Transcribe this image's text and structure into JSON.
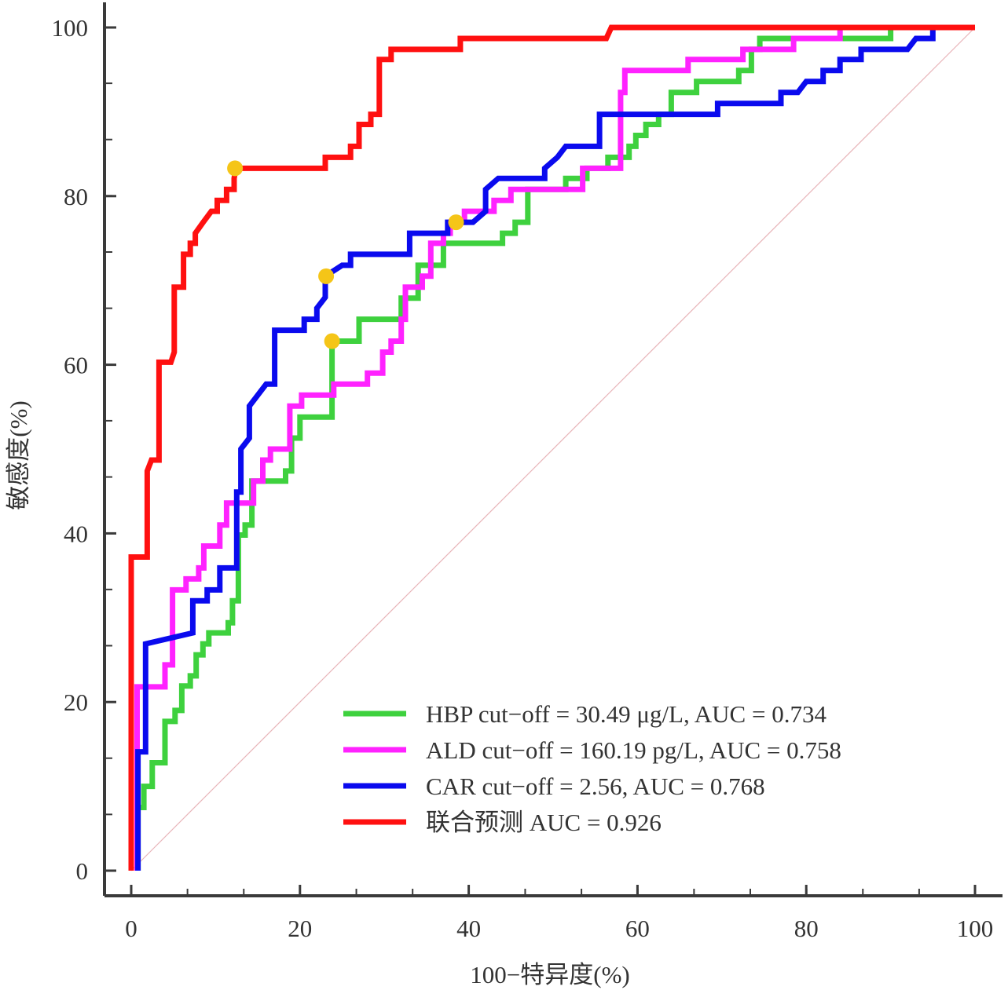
{
  "chart_data": {
    "type": "line",
    "title": "",
    "xlabel": "100−特异度(%)",
    "ylabel": "敏感度(%)",
    "xlim": [
      0,
      100
    ],
    "ylim": [
      0,
      100
    ],
    "x_ticks": [
      "0",
      "20",
      "40",
      "60",
      "80",
      "100"
    ],
    "y_ticks": [
      "0",
      "20",
      "40",
      "60",
      "80",
      "100"
    ],
    "x_minor_step": 6.67,
    "y_minor_step": 6.67,
    "grid": false,
    "legend_position": "bottom-right",
    "reference_line": {
      "from": [
        0,
        0
      ],
      "to": [
        100,
        100
      ],
      "color": "#e8b4b8"
    },
    "series": [
      {
        "name": "HBP cut−off = 30.49 μg/L, AUC = 0.734",
        "color": "#3ed13e",
        "cutoff_point": [
          23.8,
          62.8
        ],
        "points": [
          [
            0.8,
            0
          ],
          [
            0.8,
            7.5
          ],
          [
            1.5,
            7.5
          ],
          [
            1.5,
            10
          ],
          [
            2.5,
            10
          ],
          [
            2.5,
            12.8
          ],
          [
            4,
            12.8
          ],
          [
            4,
            17.7
          ],
          [
            5.2,
            17.7
          ],
          [
            5.2,
            19
          ],
          [
            6,
            19
          ],
          [
            6,
            21.9
          ],
          [
            7,
            21.9
          ],
          [
            7,
            23.1
          ],
          [
            7.7,
            23.1
          ],
          [
            7.7,
            25.6
          ],
          [
            8.5,
            25.6
          ],
          [
            8.5,
            26.9
          ],
          [
            9.2,
            26.9
          ],
          [
            9.2,
            28.2
          ],
          [
            11.5,
            28.2
          ],
          [
            11.5,
            29.4
          ],
          [
            12,
            29.4
          ],
          [
            12,
            32
          ],
          [
            12.7,
            32
          ],
          [
            12.7,
            39.8
          ],
          [
            13.5,
            39.8
          ],
          [
            13.5,
            41
          ],
          [
            14.3,
            41
          ],
          [
            14.3,
            46.2
          ],
          [
            15.5,
            46.2
          ],
          [
            15.5,
            46.2
          ],
          [
            18.3,
            46.2
          ],
          [
            18.3,
            47.4
          ],
          [
            19,
            47.4
          ],
          [
            19,
            51.3
          ],
          [
            20,
            51.3
          ],
          [
            20,
            53.8
          ],
          [
            23.8,
            53.8
          ],
          [
            23.8,
            62.8
          ],
          [
            27,
            62.8
          ],
          [
            27,
            65.4
          ],
          [
            32,
            65.4
          ],
          [
            32,
            67.9
          ],
          [
            34,
            67.9
          ],
          [
            34,
            71.8
          ],
          [
            37,
            71.8
          ],
          [
            37,
            74.4
          ],
          [
            44,
            74.4
          ],
          [
            44,
            75.6
          ],
          [
            45.5,
            75.6
          ],
          [
            45.5,
            76.9
          ],
          [
            47,
            76.9
          ],
          [
            47,
            80.8
          ],
          [
            51.5,
            80.8
          ],
          [
            51.5,
            82.1
          ],
          [
            54,
            82.1
          ],
          [
            54,
            83.3
          ],
          [
            56.5,
            83.3
          ],
          [
            56.5,
            84.6
          ],
          [
            59,
            84.6
          ],
          [
            59,
            85.9
          ],
          [
            59.8,
            85.9
          ],
          [
            59.8,
            87.2
          ],
          [
            61,
            87.2
          ],
          [
            61,
            88.5
          ],
          [
            62.5,
            88.5
          ],
          [
            62.5,
            89.7
          ],
          [
            64,
            89.7
          ],
          [
            64,
            92.3
          ],
          [
            67,
            92.3
          ],
          [
            67,
            93.6
          ],
          [
            72,
            93.6
          ],
          [
            72,
            94.9
          ],
          [
            73.5,
            94.9
          ],
          [
            73.5,
            97.4
          ],
          [
            74.5,
            97.4
          ],
          [
            74.5,
            98.7
          ],
          [
            90,
            98.7
          ],
          [
            90,
            100
          ],
          [
            100,
            100
          ]
        ]
      },
      {
        "name": "ALD cut−off = 160.19 pg/L, AUC = 0.758",
        "color": "#ff22ff",
        "cutoff_point": [
          38.5,
          76.9
        ],
        "points": [
          [
            0.7,
            0
          ],
          [
            0.7,
            21.8
          ],
          [
            4,
            21.8
          ],
          [
            4,
            24.4
          ],
          [
            4.9,
            24.4
          ],
          [
            4.9,
            33.3
          ],
          [
            6.5,
            33.3
          ],
          [
            6.5,
            34.6
          ],
          [
            8,
            34.6
          ],
          [
            8,
            35.9
          ],
          [
            8.6,
            35.9
          ],
          [
            8.6,
            38.5
          ],
          [
            10.5,
            38.5
          ],
          [
            10.5,
            41
          ],
          [
            11.3,
            41
          ],
          [
            11.3,
            43.6
          ],
          [
            14.5,
            43.6
          ],
          [
            14.5,
            46.2
          ],
          [
            15.6,
            46.2
          ],
          [
            15.6,
            48.7
          ],
          [
            16.5,
            48.7
          ],
          [
            16.5,
            50
          ],
          [
            18.8,
            50
          ],
          [
            18.8,
            55.1
          ],
          [
            20.2,
            55.1
          ],
          [
            20.2,
            56.4
          ],
          [
            24,
            56.4
          ],
          [
            24,
            57.7
          ],
          [
            28,
            57.7
          ],
          [
            28,
            59
          ],
          [
            29.8,
            59
          ],
          [
            29.8,
            61.5
          ],
          [
            30.8,
            61.5
          ],
          [
            30.8,
            62.8
          ],
          [
            32,
            62.8
          ],
          [
            32,
            65.4
          ],
          [
            32.5,
            65.4
          ],
          [
            32.5,
            69.2
          ],
          [
            34.5,
            69.2
          ],
          [
            34.5,
            70.5
          ],
          [
            35.5,
            70.5
          ],
          [
            35.5,
            74.4
          ],
          [
            37,
            74.4
          ],
          [
            37,
            75.6
          ],
          [
            37.8,
            75.6
          ],
          [
            37.8,
            76.9
          ],
          [
            39.5,
            76.9
          ],
          [
            39.5,
            78.2
          ],
          [
            43,
            78.2
          ],
          [
            43,
            79.5
          ],
          [
            45,
            79.5
          ],
          [
            45,
            80.8
          ],
          [
            53.5,
            80.8
          ],
          [
            53.5,
            83.3
          ],
          [
            58,
            83.3
          ],
          [
            58,
            92.3
          ],
          [
            58.5,
            92.3
          ],
          [
            58.5,
            94.9
          ],
          [
            66,
            94.9
          ],
          [
            66,
            96.2
          ],
          [
            72.5,
            96.2
          ],
          [
            72.5,
            97.4
          ],
          [
            78.5,
            97.4
          ],
          [
            78.5,
            98.7
          ],
          [
            84,
            98.7
          ],
          [
            84,
            100
          ],
          [
            100,
            100
          ]
        ]
      },
      {
        "name": "CAR cut−off = 2.56, AUC = 0.768",
        "color": "#0a0aee",
        "cutoff_point": [
          23.1,
          70.5
        ],
        "points": [
          [
            0.8,
            0
          ],
          [
            0.8,
            14.1
          ],
          [
            1.7,
            14.1
          ],
          [
            1.7,
            26.9
          ],
          [
            7.3,
            28.2
          ],
          [
            7.3,
            32
          ],
          [
            9,
            32
          ],
          [
            9,
            33.3
          ],
          [
            10.5,
            33.3
          ],
          [
            10.5,
            35.9
          ],
          [
            12.5,
            35.9
          ],
          [
            12.5,
            44.9
          ],
          [
            13,
            44.9
          ],
          [
            13,
            50
          ],
          [
            14,
            51.3
          ],
          [
            14,
            55.1
          ],
          [
            15,
            56.4
          ],
          [
            16,
            57.7
          ],
          [
            17,
            57.7
          ],
          [
            17,
            64.1
          ],
          [
            20.5,
            64.1
          ],
          [
            20.5,
            65.4
          ],
          [
            22,
            65.4
          ],
          [
            22,
            66.7
          ],
          [
            23,
            68
          ],
          [
            23,
            70.5
          ],
          [
            25,
            71.8
          ],
          [
            26,
            71.8
          ],
          [
            26,
            73.1
          ],
          [
            33,
            73.1
          ],
          [
            33,
            75.6
          ],
          [
            37.5,
            75.6
          ],
          [
            37.5,
            76.9
          ],
          [
            40.5,
            76.9
          ],
          [
            42,
            78.2
          ],
          [
            42,
            80.8
          ],
          [
            43.5,
            82.1
          ],
          [
            49,
            82.1
          ],
          [
            49,
            83.3
          ],
          [
            50.5,
            84.6
          ],
          [
            51.5,
            85.9
          ],
          [
            55.5,
            85.9
          ],
          [
            55.5,
            89.7
          ],
          [
            69.5,
            89.7
          ],
          [
            69.5,
            91
          ],
          [
            77,
            91
          ],
          [
            77,
            92.3
          ],
          [
            79,
            92.3
          ],
          [
            80,
            93.6
          ],
          [
            82,
            93.6
          ],
          [
            82,
            94.9
          ],
          [
            84,
            94.9
          ],
          [
            84,
            96.2
          ],
          [
            86.5,
            96.2
          ],
          [
            86.5,
            97.4
          ],
          [
            92,
            97.4
          ],
          [
            93,
            98.7
          ],
          [
            95,
            98.7
          ],
          [
            95,
            100
          ],
          [
            100,
            100
          ]
        ]
      },
      {
        "name": "联合预测 AUC = 0.926",
        "color": "#ff1010",
        "cutoff_point": [
          12.3,
          83.3
        ],
        "points": [
          [
            0,
            0
          ],
          [
            0,
            37.2
          ],
          [
            1.9,
            37.2
          ],
          [
            1.9,
            47.4
          ],
          [
            2.4,
            48.7
          ],
          [
            3.3,
            48.7
          ],
          [
            3.3,
            60.3
          ],
          [
            4.7,
            60.3
          ],
          [
            5.1,
            61.5
          ],
          [
            5.1,
            69.2
          ],
          [
            6.2,
            69.2
          ],
          [
            6.2,
            73.1
          ],
          [
            7,
            73.1
          ],
          [
            7,
            74.4
          ],
          [
            7.6,
            74.4
          ],
          [
            7.6,
            75.6
          ],
          [
            8.6,
            77
          ],
          [
            9.5,
            78.2
          ],
          [
            10.2,
            78.2
          ],
          [
            10.2,
            79.5
          ],
          [
            11.3,
            79.5
          ],
          [
            11.3,
            80.8
          ],
          [
            12.2,
            80.8
          ],
          [
            12.2,
            82.1
          ],
          [
            12.4,
            83.3
          ],
          [
            23,
            83.3
          ],
          [
            23,
            84.6
          ],
          [
            26,
            84.6
          ],
          [
            26,
            85.9
          ],
          [
            27,
            85.9
          ],
          [
            27,
            88.5
          ],
          [
            28.4,
            88.5
          ],
          [
            28.4,
            89.7
          ],
          [
            29.4,
            89.7
          ],
          [
            29.4,
            96.2
          ],
          [
            30.8,
            96.2
          ],
          [
            30.8,
            97.4
          ],
          [
            39,
            97.4
          ],
          [
            39,
            98.7
          ],
          [
            56.3,
            98.7
          ],
          [
            56.9,
            100
          ],
          [
            100,
            100
          ]
        ]
      }
    ],
    "legend_entries": [
      {
        "label": "HBP cut−off = 30.49 μg/L, AUC = 0.734",
        "color": "#3ed13e"
      },
      {
        "label": "ALD cut−off = 160.19 pg/L, AUC = 0.758",
        "color": "#ff22ff"
      },
      {
        "label": "CAR cut−off = 2.56, AUC = 0.768",
        "color": "#0a0aee"
      },
      {
        "label": "联合预测 AUC = 0.926",
        "color": "#ff1010"
      }
    ],
    "cutoff_marker_color": "#f5c518"
  }
}
